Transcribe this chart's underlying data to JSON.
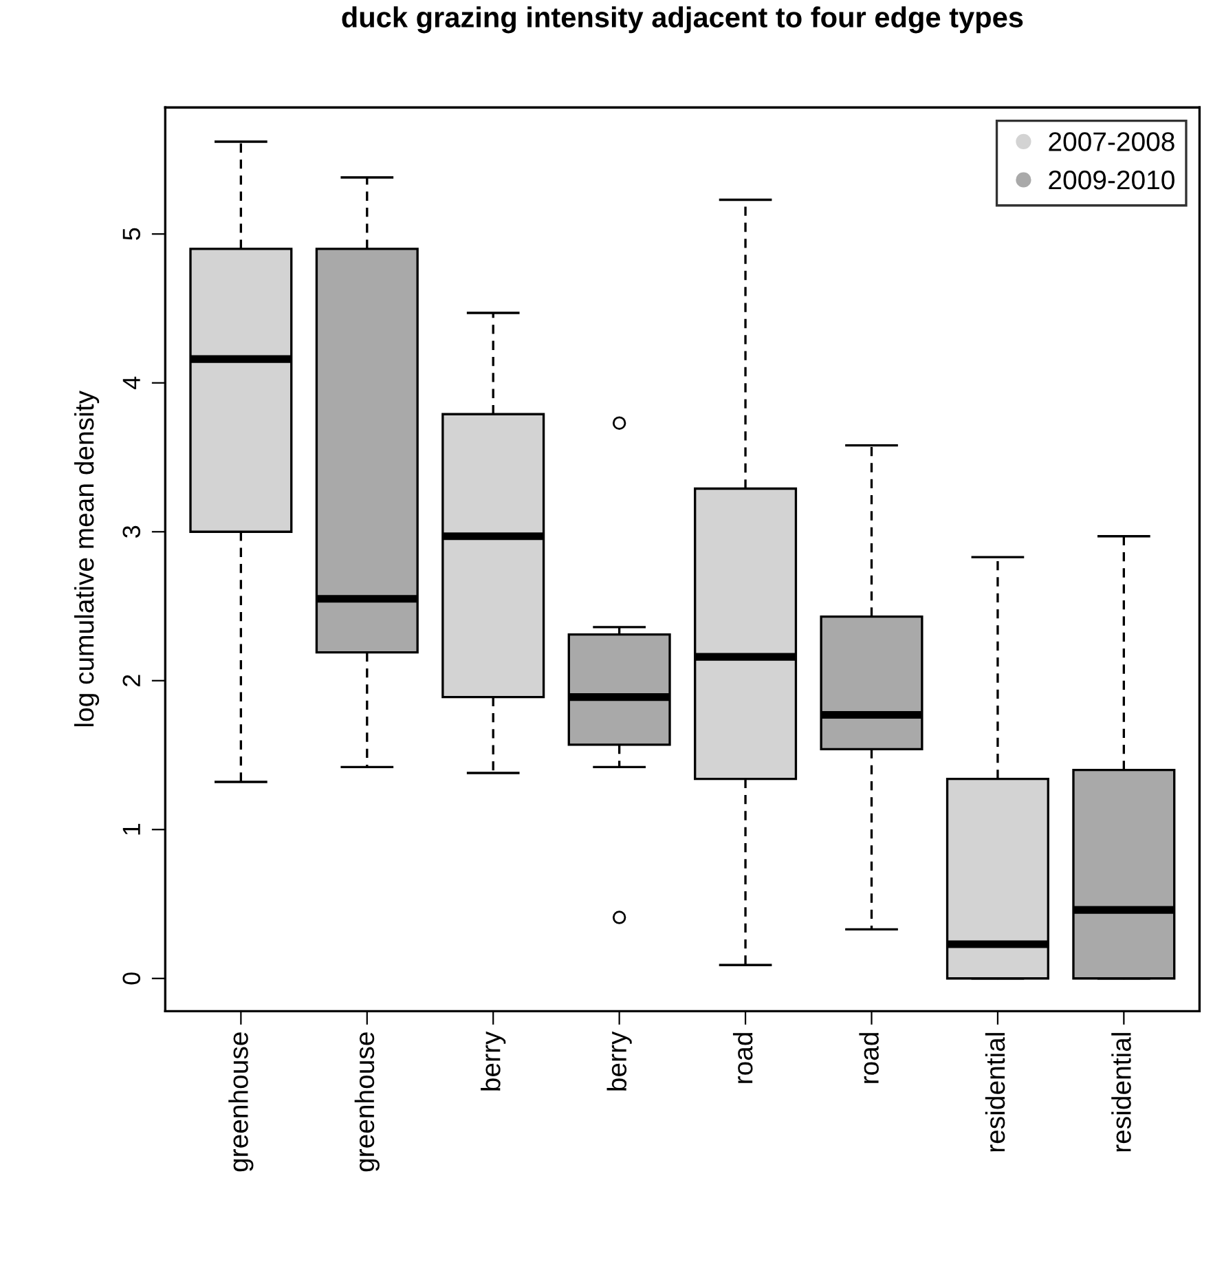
{
  "chart_data": {
    "type": "box",
    "title": "duck grazing intensity adjacent to four edge types",
    "ylabel": "log cumulative mean density",
    "categories": [
      "greenhouse",
      "greenhouse",
      "berry",
      "berry",
      "road",
      "road",
      "residential",
      "residential"
    ],
    "ylim": [
      -0.22,
      5.85
    ],
    "yticks": [
      0,
      1,
      2,
      3,
      4,
      5
    ],
    "grid": false,
    "legend": "top right",
    "marker": "circle",
    "series": [
      {
        "name": "2007-2008",
        "color": "#d3d3d3",
        "boxes": [
          {
            "low": 1.32,
            "q1": 3.0,
            "median": 4.16,
            "q3": 4.9,
            "high": 5.62
          },
          null,
          {
            "low": 1.38,
            "q1": 1.89,
            "median": 2.97,
            "q3": 3.79,
            "high": 4.47
          },
          null,
          {
            "low": 0.09,
            "q1": 1.34,
            "median": 2.16,
            "q3": 3.29,
            "high": 5.23
          },
          null,
          {
            "low": 0,
            "q1": 0,
            "median": 0.23,
            "q3": 1.34,
            "high": 2.83
          },
          null
        ]
      },
      {
        "name": "2009-2010",
        "color": "#a9a9a9",
        "boxes": [
          null,
          {
            "low": 1.42,
            "q1": 2.19,
            "median": 2.55,
            "q3": 4.9,
            "high": 5.38
          },
          null,
          {
            "low": 1.42,
            "q1": 1.57,
            "median": 1.89,
            "q3": 2.31,
            "high": 2.36,
            "outliers": [
              3.73,
              0.41
            ]
          },
          null,
          {
            "low": 0.33,
            "q1": 1.54,
            "median": 1.77,
            "q3": 2.43,
            "high": 3.58
          },
          null,
          {
            "low": 0,
            "q1": 0,
            "median": 0.46,
            "q3": 1.4,
            "high": 2.97
          }
        ]
      }
    ]
  }
}
